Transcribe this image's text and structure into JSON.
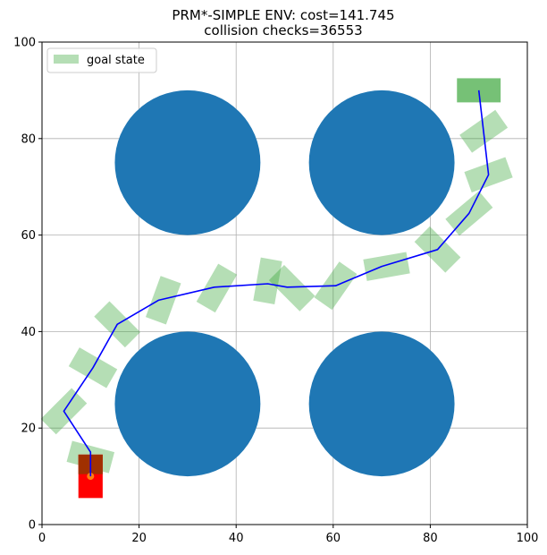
{
  "chart_data": {
    "type": "scatter",
    "title_line1": "PRM*-SIMPLE ENV: cost=141.745",
    "title_line2": "collision checks=36553",
    "xlabel": "",
    "ylabel": "",
    "xlim": [
      0,
      100
    ],
    "ylim": [
      0,
      100
    ],
    "xticks": [
      "0",
      "20",
      "40",
      "60",
      "80",
      "100"
    ],
    "yticks": [
      "0",
      "20",
      "40",
      "60",
      "80",
      "100"
    ],
    "grid": true,
    "legend": {
      "placement": "top-left",
      "entries": [
        "goal state"
      ]
    },
    "colors": {
      "obstacle": "#1f77b4",
      "path": "#0000ff",
      "state_fill": "#2ca02c",
      "goal_fill": "#2ca02c",
      "start_fill": "#ff0000",
      "start_dark": "#a03000",
      "start_marker": "#ff7f0e",
      "grid": "#b0b0b0"
    },
    "obstacles": [
      {
        "cx": 30,
        "cy": 75,
        "r": 15
      },
      {
        "cx": 70,
        "cy": 75,
        "r": 15
      },
      {
        "cx": 30,
        "cy": 25,
        "r": 15
      },
      {
        "cx": 70,
        "cy": 25,
        "r": 15
      }
    ],
    "path": [
      [
        10,
        10
      ],
      [
        10,
        15
      ],
      [
        4.5,
        23.5
      ],
      [
        10.5,
        32.5
      ],
      [
        15.5,
        41.5
      ],
      [
        24,
        46.5
      ],
      [
        35.5,
        49.2
      ],
      [
        46.5,
        49.9
      ],
      [
        50.5,
        49.2
      ],
      [
        60.5,
        49.5
      ],
      [
        70,
        53.5
      ],
      [
        81.5,
        57
      ],
      [
        88,
        64.5
      ],
      [
        92,
        72.5
      ],
      [
        90,
        90
      ]
    ],
    "states": [
      {
        "x": 10,
        "y": 14,
        "angle": -15
      },
      {
        "x": 4.5,
        "y": 23.5,
        "angle": 45
      },
      {
        "x": 10.5,
        "y": 32.5,
        "angle": -30
      },
      {
        "x": 15.5,
        "y": 41.5,
        "angle": -45
      },
      {
        "x": 25,
        "y": 46.5,
        "angle": 70
      },
      {
        "x": 36,
        "y": 49,
        "angle": 60
      },
      {
        "x": 46.5,
        "y": 50.5,
        "angle": 80
      },
      {
        "x": 51.5,
        "y": 49,
        "angle": -45
      },
      {
        "x": 60.5,
        "y": 49.5,
        "angle": 55
      },
      {
        "x": 71,
        "y": 53.5,
        "angle": 10
      },
      {
        "x": 81.5,
        "y": 57,
        "angle": -45
      },
      {
        "x": 88,
        "y": 64.5,
        "angle": 40
      },
      {
        "x": 92,
        "y": 72.5,
        "angle": 20
      },
      {
        "x": 91,
        "y": 81.5,
        "angle": 35
      }
    ],
    "goal": {
      "x": 90,
      "y": 90
    },
    "start": {
      "x": 10,
      "y": 10
    }
  }
}
